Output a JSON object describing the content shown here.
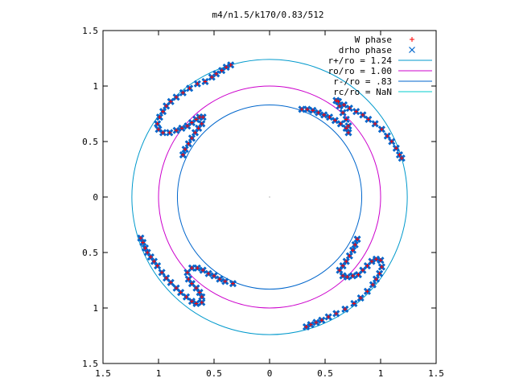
{
  "chart_data": {
    "type": "scatter",
    "title": "m4/n1.5/k170/0.83/512",
    "xlabel": "",
    "ylabel": "",
    "xlim": [
      -1.5,
      1.5
    ],
    "ylim": [
      -1.5,
      1.5
    ],
    "x_ticks": [
      {
        "value": -1.5,
        "label": "1.5"
      },
      {
        "value": -1.0,
        "label": "1"
      },
      {
        "value": -0.5,
        "label": "0.5"
      },
      {
        "value": 0.0,
        "label": "0"
      },
      {
        "value": 0.5,
        "label": "0.5"
      },
      {
        "value": 1.0,
        "label": "1"
      },
      {
        "value": 1.5,
        "label": "1.5"
      }
    ],
    "y_ticks": [
      {
        "value": 1.5,
        "label": "1.5"
      },
      {
        "value": 1.0,
        "label": "1"
      },
      {
        "value": 0.5,
        "label": "0.5"
      },
      {
        "value": 0.0,
        "label": "0"
      },
      {
        "value": -0.5,
        "label": "0.5"
      },
      {
        "value": -1.0,
        "label": "1"
      },
      {
        "value": -1.5,
        "label": "1.5"
      }
    ],
    "grid": false,
    "legend_position": "top-right",
    "series": [
      {
        "name": "W phase",
        "marker": "+",
        "color": "#ff0000",
        "points": [
          [
            -0.35,
            1.19
          ],
          [
            -0.39,
            1.17
          ],
          [
            -0.43,
            1.14
          ],
          [
            -0.48,
            1.11
          ],
          [
            -0.52,
            1.08
          ],
          [
            -0.58,
            1.04
          ],
          [
            -0.65,
            1.02
          ],
          [
            -0.72,
            0.98
          ],
          [
            -0.78,
            0.94
          ],
          [
            -0.84,
            0.9
          ],
          [
            -0.89,
            0.86
          ],
          [
            -0.93,
            0.82
          ],
          [
            -0.96,
            0.77
          ],
          [
            -0.99,
            0.72
          ],
          [
            -1.01,
            0.66
          ],
          [
            -1.0,
            0.61
          ],
          [
            -0.96,
            0.58
          ],
          [
            -0.9,
            0.58
          ],
          [
            -0.84,
            0.6
          ],
          [
            -0.79,
            0.62
          ],
          [
            -0.74,
            0.64
          ],
          [
            -0.7,
            0.67
          ],
          [
            -0.66,
            0.7
          ],
          [
            -0.63,
            0.72
          ],
          [
            -0.6,
            0.72
          ],
          [
            -0.61,
            0.66
          ],
          [
            -0.64,
            0.62
          ],
          [
            -0.67,
            0.58
          ],
          [
            -0.7,
            0.53
          ],
          [
            -0.73,
            0.48
          ],
          [
            -0.76,
            0.43
          ],
          [
            -0.78,
            0.38
          ],
          [
            -1.16,
            -0.37
          ],
          [
            -1.14,
            -0.41
          ],
          [
            -1.12,
            -0.46
          ],
          [
            -1.1,
            -0.5
          ],
          [
            -1.07,
            -0.54
          ],
          [
            -1.04,
            -0.58
          ],
          [
            -1.01,
            -0.62
          ],
          [
            -0.97,
            -0.68
          ],
          [
            -0.93,
            -0.73
          ],
          [
            -0.89,
            -0.77
          ],
          [
            -0.84,
            -0.82
          ],
          [
            -0.8,
            -0.86
          ],
          [
            -0.75,
            -0.9
          ],
          [
            -0.7,
            -0.94
          ],
          [
            -0.66,
            -0.96
          ],
          [
            -0.61,
            -0.95
          ],
          [
            -0.61,
            -0.9
          ],
          [
            -0.63,
            -0.86
          ],
          [
            -0.66,
            -0.82
          ],
          [
            -0.7,
            -0.78
          ],
          [
            -0.73,
            -0.74
          ],
          [
            -0.74,
            -0.68
          ],
          [
            -0.7,
            -0.64
          ],
          [
            -0.65,
            -0.64
          ],
          [
            -0.6,
            -0.66
          ],
          [
            -0.55,
            -0.69
          ],
          [
            -0.5,
            -0.71
          ],
          [
            -0.45,
            -0.74
          ],
          [
            -0.4,
            -0.76
          ],
          [
            -0.33,
            -0.78
          ],
          [
            0.33,
            -1.17
          ],
          [
            0.37,
            -1.15
          ],
          [
            0.42,
            -1.13
          ],
          [
            0.47,
            -1.11
          ],
          [
            0.53,
            -1.08
          ],
          [
            0.6,
            -1.05
          ],
          [
            0.68,
            -1.01
          ],
          [
            0.76,
            -0.96
          ],
          [
            0.82,
            -0.91
          ],
          [
            0.88,
            -0.85
          ],
          [
            0.93,
            -0.79
          ],
          [
            0.96,
            -0.74
          ],
          [
            0.99,
            -0.69
          ],
          [
            1.01,
            -0.63
          ],
          [
            1.0,
            -0.57
          ],
          [
            0.96,
            -0.56
          ],
          [
            0.92,
            -0.58
          ],
          [
            0.88,
            -0.62
          ],
          [
            0.84,
            -0.66
          ],
          [
            0.8,
            -0.7
          ],
          [
            0.75,
            -0.71
          ],
          [
            0.7,
            -0.72
          ],
          [
            0.66,
            -0.71
          ],
          [
            0.63,
            -0.66
          ],
          [
            0.66,
            -0.62
          ],
          [
            0.69,
            -0.58
          ],
          [
            0.72,
            -0.53
          ],
          [
            0.75,
            -0.48
          ],
          [
            0.77,
            -0.43
          ],
          [
            0.79,
            -0.38
          ],
          [
            0.29,
            0.79
          ],
          [
            0.34,
            0.79
          ],
          [
            0.39,
            0.78
          ],
          [
            0.44,
            0.76
          ],
          [
            0.49,
            0.74
          ],
          [
            0.54,
            0.72
          ],
          [
            0.59,
            0.69
          ],
          [
            0.64,
            0.66
          ],
          [
            0.69,
            0.62
          ],
          [
            0.71,
            0.58
          ],
          [
            0.71,
            0.64
          ],
          [
            0.69,
            0.7
          ],
          [
            0.66,
            0.76
          ],
          [
            0.63,
            0.82
          ],
          [
            0.6,
            0.87
          ],
          [
            0.62,
            0.86
          ],
          [
            0.67,
            0.83
          ],
          [
            0.72,
            0.8
          ],
          [
            0.78,
            0.77
          ],
          [
            0.84,
            0.74
          ],
          [
            0.89,
            0.7
          ],
          [
            0.95,
            0.66
          ],
          [
            1.01,
            0.61
          ],
          [
            1.06,
            0.55
          ],
          [
            1.1,
            0.5
          ],
          [
            1.14,
            0.44
          ],
          [
            1.17,
            0.38
          ],
          [
            1.19,
            0.35
          ]
        ]
      },
      {
        "name": "drho phase",
        "marker": "x",
        "color": "#0066cc",
        "points": [
          [
            -0.35,
            1.19
          ],
          [
            -0.39,
            1.17
          ],
          [
            -0.43,
            1.14
          ],
          [
            -0.48,
            1.11
          ],
          [
            -0.52,
            1.08
          ],
          [
            -0.58,
            1.04
          ],
          [
            -0.65,
            1.02
          ],
          [
            -0.72,
            0.98
          ],
          [
            -0.78,
            0.94
          ],
          [
            -0.84,
            0.9
          ],
          [
            -0.89,
            0.86
          ],
          [
            -0.93,
            0.82
          ],
          [
            -0.96,
            0.77
          ],
          [
            -0.99,
            0.72
          ],
          [
            -1.01,
            0.66
          ],
          [
            -1.0,
            0.61
          ],
          [
            -0.96,
            0.58
          ],
          [
            -0.9,
            0.58
          ],
          [
            -0.84,
            0.6
          ],
          [
            -0.79,
            0.62
          ],
          [
            -0.74,
            0.64
          ],
          [
            -0.7,
            0.67
          ],
          [
            -0.66,
            0.7
          ],
          [
            -0.63,
            0.72
          ],
          [
            -0.6,
            0.72
          ],
          [
            -0.61,
            0.66
          ],
          [
            -0.64,
            0.62
          ],
          [
            -0.67,
            0.58
          ],
          [
            -0.7,
            0.53
          ],
          [
            -0.73,
            0.48
          ],
          [
            -0.76,
            0.43
          ],
          [
            -0.78,
            0.38
          ],
          [
            -1.16,
            -0.37
          ],
          [
            -1.14,
            -0.41
          ],
          [
            -1.12,
            -0.46
          ],
          [
            -1.1,
            -0.5
          ],
          [
            -1.07,
            -0.54
          ],
          [
            -1.04,
            -0.58
          ],
          [
            -1.01,
            -0.62
          ],
          [
            -0.97,
            -0.68
          ],
          [
            -0.93,
            -0.73
          ],
          [
            -0.89,
            -0.77
          ],
          [
            -0.84,
            -0.82
          ],
          [
            -0.8,
            -0.86
          ],
          [
            -0.75,
            -0.9
          ],
          [
            -0.7,
            -0.94
          ],
          [
            -0.66,
            -0.96
          ],
          [
            -0.61,
            -0.95
          ],
          [
            -0.61,
            -0.9
          ],
          [
            -0.63,
            -0.86
          ],
          [
            -0.66,
            -0.82
          ],
          [
            -0.7,
            -0.78
          ],
          [
            -0.73,
            -0.74
          ],
          [
            -0.74,
            -0.68
          ],
          [
            -0.7,
            -0.64
          ],
          [
            -0.65,
            -0.64
          ],
          [
            -0.6,
            -0.66
          ],
          [
            -0.55,
            -0.69
          ],
          [
            -0.5,
            -0.71
          ],
          [
            -0.45,
            -0.74
          ],
          [
            -0.4,
            -0.76
          ],
          [
            -0.33,
            -0.78
          ],
          [
            0.33,
            -1.17
          ],
          [
            0.37,
            -1.15
          ],
          [
            0.42,
            -1.13
          ],
          [
            0.47,
            -1.11
          ],
          [
            0.53,
            -1.08
          ],
          [
            0.6,
            -1.05
          ],
          [
            0.68,
            -1.01
          ],
          [
            0.76,
            -0.96
          ],
          [
            0.82,
            -0.91
          ],
          [
            0.88,
            -0.85
          ],
          [
            0.93,
            -0.79
          ],
          [
            0.96,
            -0.74
          ],
          [
            0.99,
            -0.69
          ],
          [
            1.01,
            -0.63
          ],
          [
            1.0,
            -0.57
          ],
          [
            0.96,
            -0.56
          ],
          [
            0.92,
            -0.58
          ],
          [
            0.88,
            -0.62
          ],
          [
            0.84,
            -0.66
          ],
          [
            0.8,
            -0.7
          ],
          [
            0.75,
            -0.71
          ],
          [
            0.7,
            -0.72
          ],
          [
            0.66,
            -0.71
          ],
          [
            0.63,
            -0.66
          ],
          [
            0.66,
            -0.62
          ],
          [
            0.69,
            -0.58
          ],
          [
            0.72,
            -0.53
          ],
          [
            0.75,
            -0.48
          ],
          [
            0.77,
            -0.43
          ],
          [
            0.79,
            -0.38
          ],
          [
            0.29,
            0.79
          ],
          [
            0.34,
            0.79
          ],
          [
            0.39,
            0.78
          ],
          [
            0.44,
            0.76
          ],
          [
            0.49,
            0.74
          ],
          [
            0.54,
            0.72
          ],
          [
            0.59,
            0.69
          ],
          [
            0.64,
            0.66
          ],
          [
            0.69,
            0.62
          ],
          [
            0.71,
            0.58
          ],
          [
            0.71,
            0.64
          ],
          [
            0.69,
            0.7
          ],
          [
            0.66,
            0.76
          ],
          [
            0.63,
            0.82
          ],
          [
            0.6,
            0.87
          ],
          [
            0.62,
            0.86
          ],
          [
            0.67,
            0.83
          ],
          [
            0.72,
            0.8
          ],
          [
            0.78,
            0.77
          ],
          [
            0.84,
            0.74
          ],
          [
            0.89,
            0.7
          ],
          [
            0.95,
            0.66
          ],
          [
            1.01,
            0.61
          ],
          [
            1.06,
            0.55
          ],
          [
            1.1,
            0.5
          ],
          [
            1.14,
            0.44
          ],
          [
            1.17,
            0.38
          ],
          [
            1.19,
            0.35
          ]
        ]
      }
    ],
    "circles": [
      {
        "name": "r+/ro = 1.24",
        "radius": 1.24,
        "color": "#0099cc"
      },
      {
        "name": "ro/ro = 1.00",
        "radius": 1.0,
        "color": "#cc00cc"
      },
      {
        "name": "r-/ro = .83",
        "radius": 0.83,
        "color": "#0066cc"
      },
      {
        "name": "rc/ro = NaN",
        "radius": null,
        "color": "#00cccc"
      }
    ]
  }
}
